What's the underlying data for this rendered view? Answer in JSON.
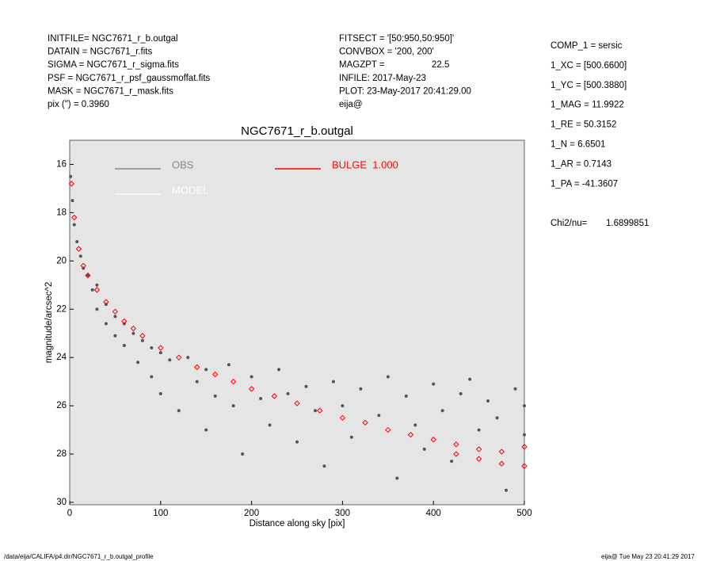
{
  "header": {
    "left": [
      "INITFILE= NGC7671_r_b.outgal",
      "DATAIN  = NGC7671_r.fits",
      "SIGMA  = NGC7671_r_sigma.fits",
      "PSF    = NGC7671_r_psf_gaussmoffat.fits",
      "MASK   = NGC7671_r_mask.fits",
      "pix (\") =  0.3960"
    ],
    "middle": [
      "FITSECT = '[50:950,50:950]'",
      "CONVBOX = '200, 200'",
      "MAGZPT =",
      "INFILE: 2017-May-23",
      "PLOT: 23-May-2017 20:41:29.00",
      "eija@"
    ],
    "magzpt_value": "22.5",
    "right": [
      "COMP_1  = sersic",
      "1_XC    = [500.6600]",
      "1_YC    = [500.3880]",
      "1_MAG   = 11.9922",
      "1_RE    = 50.3152",
      "1_N     = 6.6501",
      "1_AR    = 0.7143",
      "1_PA    = -41.3607"
    ],
    "chi_label": "Chi2/nu=",
    "chi_value": "1.6899851"
  },
  "footer": {
    "left": "/data/eija/CALIFA/p4.dir/NGC7671_r_b.outgal_profile",
    "right": "eija@  Tue May 23 20:41:29 2017"
  },
  "chart_data": {
    "type": "scatter",
    "title": "NGC7671_r_b.outgal",
    "x_label": "Distance along sky [pix]",
    "y_label": "magnitude/arcsec^2",
    "xlim": [
      0,
      500
    ],
    "ylim": [
      30.1,
      15
    ],
    "xticks": [
      0,
      100,
      200,
      300,
      400,
      500
    ],
    "yticks": [
      16,
      18,
      20,
      22,
      24,
      26,
      28,
      30
    ],
    "background": "#e5e5e5",
    "series": [
      {
        "name": "OBS",
        "color": "#555555",
        "legend_color": "#888888",
        "x": [
          1,
          3,
          5,
          8,
          12,
          15,
          20,
          25,
          30,
          30,
          40,
          40,
          50,
          50,
          60,
          60,
          70,
          75,
          80,
          90,
          90,
          100,
          100,
          110,
          120,
          130,
          140,
          150,
          150,
          160,
          175,
          180,
          190,
          200,
          210,
          220,
          230,
          240,
          250,
          260,
          270,
          280,
          290,
          300,
          310,
          320,
          340,
          350,
          360,
          370,
          380,
          390,
          400,
          410,
          420,
          430,
          440,
          450,
          460,
          470,
          480,
          490,
          500,
          500
        ],
        "values": [
          16.5,
          17.5,
          18.5,
          19.2,
          19.8,
          20.3,
          20.6,
          21.2,
          21.0,
          22.0,
          21.8,
          22.6,
          22.3,
          23.1,
          22.6,
          23.5,
          23.0,
          24.2,
          23.3,
          23.6,
          24.8,
          23.8,
          25.5,
          24.1,
          26.2,
          24.0,
          25.0,
          24.5,
          27.0,
          25.6,
          24.3,
          26.0,
          28.0,
          24.8,
          25.7,
          26.8,
          24.5,
          25.5,
          27.5,
          25.2,
          26.2,
          28.5,
          25.0,
          26.0,
          27.3,
          25.3,
          26.4,
          24.8,
          29.0,
          25.6,
          26.8,
          27.8,
          25.1,
          26.2,
          28.3,
          25.5,
          24.9,
          27.0,
          25.8,
          26.5,
          29.5,
          25.3,
          26.0,
          27.2
        ]
      },
      {
        "name": "MODEL",
        "color": "#ffffff",
        "legend_color": "#ffffff",
        "x": [],
        "values": []
      },
      {
        "name": "BULGE  1.000",
        "color": "#ff0000",
        "legend_color": "#ff0000",
        "x": [
          2,
          5,
          10,
          15,
          20,
          30,
          40,
          50,
          60,
          70,
          80,
          100,
          120,
          140,
          160,
          180,
          200,
          225,
          250,
          275,
          300,
          325,
          350,
          375,
          400,
          425,
          450,
          475,
          500,
          425,
          450,
          475,
          500
        ],
        "values": [
          16.8,
          18.2,
          19.5,
          20.2,
          20.6,
          21.2,
          21.7,
          22.1,
          22.5,
          22.8,
          23.1,
          23.6,
          24.0,
          24.4,
          24.7,
          25.0,
          25.3,
          25.6,
          25.9,
          26.2,
          26.5,
          26.7,
          27.0,
          27.2,
          27.4,
          27.6,
          27.8,
          27.9,
          27.7,
          28.0,
          28.2,
          28.4,
          28.5
        ]
      }
    ]
  }
}
